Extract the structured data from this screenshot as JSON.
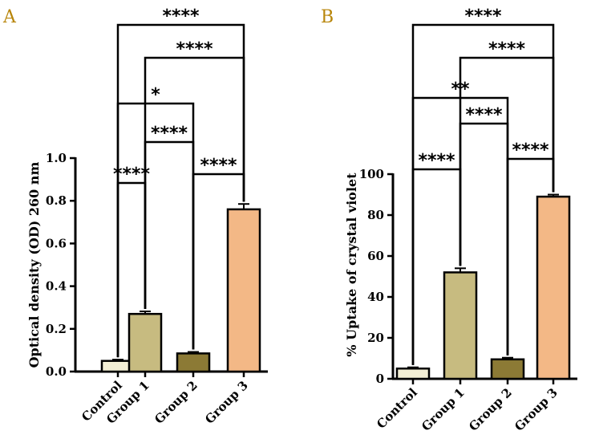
{
  "chart_data": [
    {
      "type": "bar",
      "panel_label": "A",
      "categories": [
        "Control",
        "Group 1",
        "Group 2",
        "Group 3"
      ],
      "values": [
        0.05,
        0.27,
        0.085,
        0.76
      ],
      "errors": [
        0.006,
        0.012,
        0.007,
        0.025
      ],
      "colors": [
        "#f3efd5",
        "#c7bb80",
        "#8c7a35",
        "#f3b886"
      ],
      "title": "",
      "xlabel": "",
      "ylabel": "Optical density (OD) 260 nm",
      "ylim": [
        0,
        1.0
      ],
      "yticks": [
        "0.0",
        "0.2",
        "0.4",
        "0.6",
        "0.8",
        "1.0"
      ],
      "yticks_values": [
        0,
        0.2,
        0.4,
        0.6,
        0.8,
        1.0
      ],
      "comparisons": [
        {
          "from": 0,
          "to": 1,
          "label": "****"
        },
        {
          "from": 2,
          "to": 3,
          "label": "****"
        },
        {
          "from": 1,
          "to": 2,
          "label": "****"
        },
        {
          "from": 0,
          "to": 2,
          "label": "*"
        },
        {
          "from": 1,
          "to": 3,
          "label": "****"
        },
        {
          "from": 0,
          "to": 3,
          "label": "****"
        }
      ]
    },
    {
      "type": "bar",
      "panel_label": "B",
      "categories": [
        "Control",
        "Group 1",
        "Group 2",
        "Group 3"
      ],
      "values": [
        5,
        52,
        9.5,
        89
      ],
      "errors": [
        0.6,
        2.0,
        0.8,
        1.0
      ],
      "colors": [
        "#f3efd5",
        "#c7bb80",
        "#8c7a35",
        "#f3b886"
      ],
      "title": "",
      "xlabel": "",
      "ylabel": "% Uptake of crystal violet",
      "ylim": [
        0,
        100
      ],
      "yticks": [
        "0",
        "20",
        "40",
        "60",
        "80",
        "100"
      ],
      "yticks_values": [
        0,
        20,
        40,
        60,
        80,
        100
      ],
      "comparisons": [
        {
          "from": 0,
          "to": 1,
          "label": "****"
        },
        {
          "from": 2,
          "to": 3,
          "label": "****"
        },
        {
          "from": 1,
          "to": 2,
          "label": "****"
        },
        {
          "from": 0,
          "to": 2,
          "label": "**"
        },
        {
          "from": 1,
          "to": 3,
          "label": "****"
        },
        {
          "from": 0,
          "to": 3,
          "label": "****"
        }
      ]
    }
  ]
}
